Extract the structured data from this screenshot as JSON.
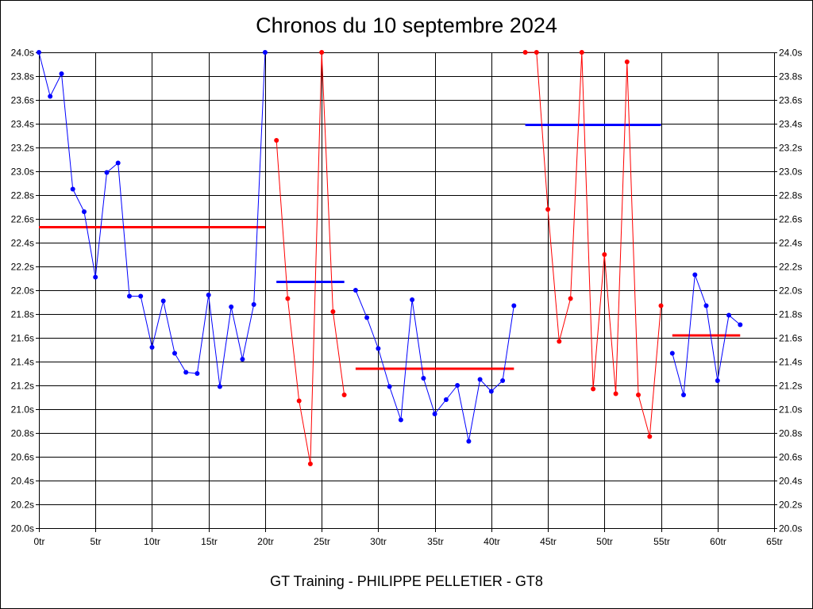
{
  "chart_data": {
    "type": "line",
    "title": "Chronos du 10 septembre 2024",
    "footer": "GT Training - PHILIPPE PELLETIER - GT8",
    "xlabel": "",
    "ylabel": "",
    "xlim": [
      0,
      65
    ],
    "ylim": [
      20.0,
      24.0
    ],
    "x_ticks": [
      0,
      5,
      10,
      15,
      20,
      25,
      30,
      35,
      40,
      45,
      50,
      55,
      60,
      65
    ],
    "x_tick_labels": [
      "0tr",
      "5tr",
      "10tr",
      "15tr",
      "20tr",
      "25tr",
      "30tr",
      "35tr",
      "40tr",
      "45tr",
      "50tr",
      "55tr",
      "60tr",
      "65tr"
    ],
    "y_ticks": [
      20.0,
      20.2,
      20.4,
      20.6,
      20.8,
      21.0,
      21.2,
      21.4,
      21.6,
      21.8,
      22.0,
      22.2,
      22.4,
      22.6,
      22.8,
      23.0,
      23.2,
      23.4,
      23.6,
      23.8,
      24.0
    ],
    "y_tick_labels": [
      "20.0s",
      "20.2s",
      "20.4s",
      "20.6s",
      "20.8s",
      "21.0s",
      "21.2s",
      "21.4s",
      "21.6s",
      "21.8s",
      "22.0s",
      "22.2s",
      "22.4s",
      "22.6s",
      "22.8s",
      "23.0s",
      "23.2s",
      "23.4s",
      "23.6s",
      "23.8s",
      "24.0s"
    ],
    "grid": true,
    "series": [
      {
        "color": "#0000ff",
        "x": [
          0,
          1,
          2,
          3,
          4,
          5,
          6,
          7,
          8,
          9,
          10,
          11,
          12,
          13,
          14,
          15,
          16,
          17,
          18,
          19,
          20
        ],
        "values": [
          24.0,
          23.63,
          23.82,
          22.85,
          22.66,
          22.11,
          22.99,
          23.07,
          21.95,
          21.95,
          21.52,
          21.91,
          21.47,
          21.31,
          21.3,
          21.96,
          21.19,
          21.86,
          21.42,
          21.88,
          24.0
        ]
      },
      {
        "color": "#ff0000",
        "x": [
          21,
          22,
          23,
          24,
          25,
          26,
          27
        ],
        "values": [
          23.26,
          21.93,
          21.07,
          20.54,
          24.0,
          21.82,
          21.12
        ]
      },
      {
        "color": "#0000ff",
        "x": [
          28,
          29,
          30,
          31,
          32,
          33,
          34,
          35,
          36,
          37,
          38,
          39,
          40,
          41,
          42
        ],
        "values": [
          22.0,
          21.77,
          21.51,
          21.19,
          20.91,
          21.92,
          21.26,
          20.96,
          21.08,
          21.2,
          20.73,
          21.25,
          21.15,
          21.24,
          21.87
        ]
      },
      {
        "color": "#ff0000",
        "x": [
          43,
          44,
          45,
          46,
          47,
          48,
          49,
          50,
          51,
          52,
          53,
          54,
          55
        ],
        "values": [
          24.0,
          24.0,
          22.68,
          21.57,
          21.93,
          24.0,
          21.17,
          22.3,
          21.13,
          23.92,
          21.12,
          20.77,
          21.87
        ]
      },
      {
        "color": "#0000ff",
        "x": [
          56,
          57,
          58,
          59,
          60,
          61,
          62
        ],
        "values": [
          21.47,
          21.12,
          22.13,
          21.87,
          21.24,
          21.79,
          21.71
        ]
      }
    ],
    "averages": [
      {
        "color": "#ff0000",
        "x_start": 0,
        "x_end": 20,
        "value": 22.53
      },
      {
        "color": "#0000ff",
        "x_start": 21,
        "x_end": 27,
        "value": 22.07
      },
      {
        "color": "#ff0000",
        "x_start": 28,
        "x_end": 42,
        "value": 21.34
      },
      {
        "color": "#0000ff",
        "x_start": 43,
        "x_end": 55,
        "value": 23.39
      },
      {
        "color": "#ff0000",
        "x_start": 56,
        "x_end": 62,
        "value": 21.62
      }
    ]
  }
}
